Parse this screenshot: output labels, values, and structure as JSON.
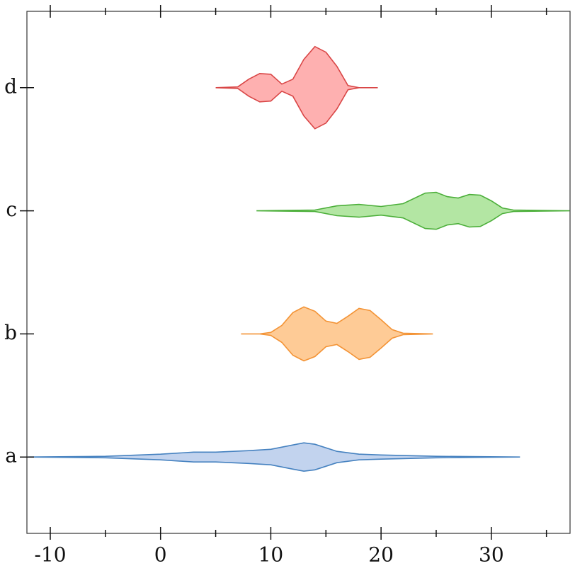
{
  "chart_data": {
    "type": "violin",
    "orientation": "horizontal",
    "categories": [
      "a",
      "b",
      "c",
      "d"
    ],
    "violins": [
      {
        "color": "#4682c0",
        "fill": "#c2d3ee",
        "x": [
          -12,
          -5,
          0,
          3,
          5,
          8,
          10,
          12,
          13,
          14,
          16,
          18,
          20,
          25,
          32.6
        ],
        "widths": [
          0,
          0.006,
          0.023,
          0.04,
          0.04,
          0.052,
          0.063,
          0.098,
          0.115,
          0.104,
          0.046,
          0.023,
          0.017,
          0.006,
          0
        ]
      },
      {
        "color": "#f39335",
        "fill": "#fecb96",
        "x": [
          7.3,
          9,
          10,
          11,
          12,
          13,
          14,
          15,
          16,
          17,
          18,
          19,
          20,
          21,
          22,
          24.7
        ],
        "widths": [
          0,
          0,
          0.012,
          0.069,
          0.173,
          0.219,
          0.184,
          0.104,
          0.086,
          0.144,
          0.207,
          0.19,
          0.115,
          0.035,
          0.006,
          0
        ]
      },
      {
        "color": "#4caf3a",
        "fill": "#b3e6a3",
        "x": [
          8.7,
          14,
          16,
          18,
          20,
          22,
          24,
          25,
          26,
          27,
          28,
          29,
          30,
          31,
          32,
          37.1
        ],
        "widths": [
          0,
          0.006,
          0.04,
          0.052,
          0.035,
          0.058,
          0.144,
          0.15,
          0.115,
          0.104,
          0.132,
          0.127,
          0.081,
          0.023,
          0.006,
          0
        ]
      },
      {
        "color": "#d94646",
        "fill": "#feb0b0",
        "x": [
          5,
          7,
          8,
          9,
          10,
          11,
          12,
          13,
          14,
          15,
          16,
          17,
          18,
          19.7
        ],
        "widths": [
          0,
          0.006,
          0.069,
          0.115,
          0.109,
          0.029,
          0.069,
          0.23,
          0.334,
          0.288,
          0.173,
          0.017,
          0,
          0
        ]
      }
    ],
    "xlim": [
      -12.12,
      37.14
    ],
    "xticks": [
      -10,
      0,
      10,
      20,
      30
    ],
    "xminorticks": [
      -5,
      5,
      15,
      25,
      35
    ],
    "ylim": [
      -0.62,
      3.62
    ]
  }
}
